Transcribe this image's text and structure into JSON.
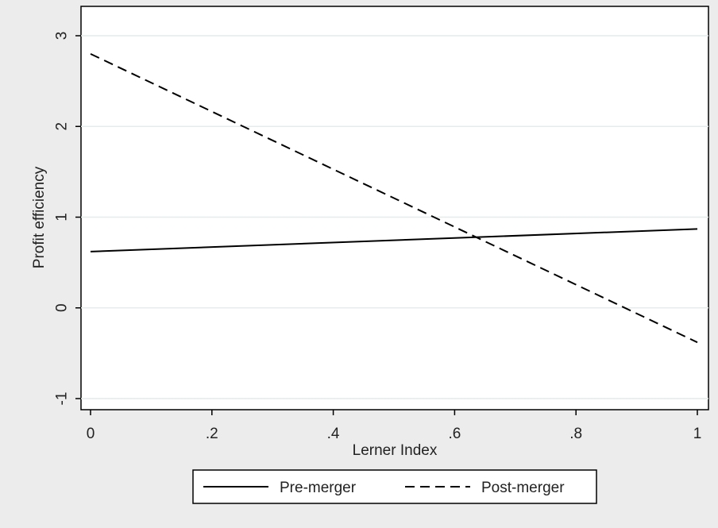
{
  "chart_data": {
    "type": "line",
    "title": "",
    "xlabel": "Lerner Index",
    "ylabel": "Profit efficiency",
    "xlim": [
      0,
      1
    ],
    "ylim": [
      -1,
      3
    ],
    "xticks": [
      {
        "value": 0,
        "label": "0"
      },
      {
        "value": 0.2,
        "label": ".2"
      },
      {
        "value": 0.4,
        "label": ".4"
      },
      {
        "value": 0.6,
        "label": ".6"
      },
      {
        "value": 0.8,
        "label": ".8"
      },
      {
        "value": 1,
        "label": "1"
      }
    ],
    "yticks": [
      {
        "value": -1,
        "label": "-1"
      },
      {
        "value": 0,
        "label": "0"
      },
      {
        "value": 1,
        "label": "1"
      },
      {
        "value": 2,
        "label": "2"
      },
      {
        "value": 3,
        "label": "3"
      }
    ],
    "grid": true,
    "legend_position": "bottom",
    "series": [
      {
        "name": "Pre-merger",
        "style": "solid",
        "color": "#000000",
        "x": [
          0,
          1
        ],
        "y": [
          0.62,
          0.87
        ]
      },
      {
        "name": "Post-merger",
        "style": "dashed",
        "color": "#000000",
        "x": [
          0,
          1
        ],
        "y": [
          2.8,
          -0.38
        ]
      }
    ]
  }
}
